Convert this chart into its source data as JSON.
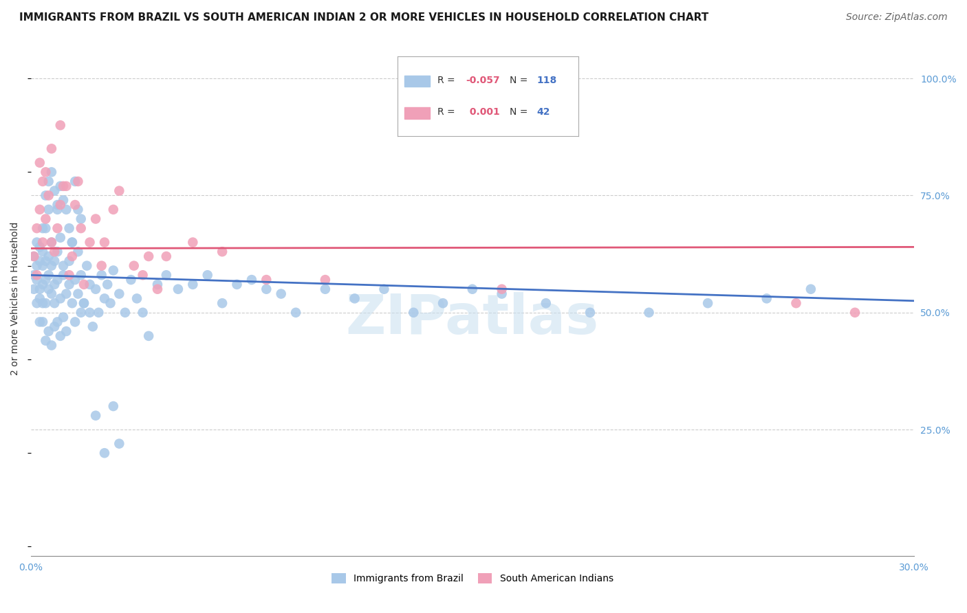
{
  "title": "IMMIGRANTS FROM BRAZIL VS SOUTH AMERICAN INDIAN 2 OR MORE VEHICLES IN HOUSEHOLD CORRELATION CHART",
  "source": "Source: ZipAtlas.com",
  "ylabel": "2 or more Vehicles in Household",
  "xlim": [
    0.0,
    0.3
  ],
  "ylim": [
    -0.02,
    1.08
  ],
  "legend_r_brazil": "-0.057",
  "legend_n_brazil": "118",
  "legend_r_indian": " 0.001",
  "legend_n_indian": "42",
  "legend_label_brazil": "Immigrants from Brazil",
  "legend_label_indian": "South American Indians",
  "blue_color": "#a8c8e8",
  "pink_color": "#f0a0b8",
  "line_blue": "#4472c4",
  "line_pink": "#e05878",
  "brazil_x": [
    0.001,
    0.001,
    0.001,
    0.002,
    0.002,
    0.002,
    0.002,
    0.003,
    0.003,
    0.003,
    0.003,
    0.003,
    0.004,
    0.004,
    0.004,
    0.004,
    0.004,
    0.004,
    0.005,
    0.005,
    0.005,
    0.005,
    0.005,
    0.006,
    0.006,
    0.006,
    0.006,
    0.006,
    0.007,
    0.007,
    0.007,
    0.007,
    0.008,
    0.008,
    0.008,
    0.008,
    0.009,
    0.009,
    0.009,
    0.009,
    0.01,
    0.01,
    0.01,
    0.011,
    0.011,
    0.011,
    0.012,
    0.012,
    0.013,
    0.013,
    0.014,
    0.014,
    0.015,
    0.015,
    0.016,
    0.016,
    0.017,
    0.017,
    0.018,
    0.019,
    0.02,
    0.021,
    0.022,
    0.023,
    0.024,
    0.025,
    0.026,
    0.027,
    0.028,
    0.03,
    0.032,
    0.034,
    0.036,
    0.038,
    0.04,
    0.043,
    0.046,
    0.05,
    0.055,
    0.06,
    0.065,
    0.07,
    0.075,
    0.08,
    0.085,
    0.09,
    0.1,
    0.11,
    0.12,
    0.13,
    0.14,
    0.15,
    0.16,
    0.175,
    0.19,
    0.21,
    0.23,
    0.25,
    0.265,
    0.005,
    0.006,
    0.007,
    0.008,
    0.009,
    0.01,
    0.011,
    0.012,
    0.013,
    0.014,
    0.015,
    0.016,
    0.017,
    0.018,
    0.02,
    0.022,
    0.025,
    0.028,
    0.03
  ],
  "brazil_y": [
    0.58,
    0.55,
    0.62,
    0.6,
    0.52,
    0.65,
    0.57,
    0.61,
    0.55,
    0.48,
    0.64,
    0.53,
    0.6,
    0.56,
    0.52,
    0.68,
    0.48,
    0.63,
    0.57,
    0.61,
    0.44,
    0.52,
    0.68,
    0.58,
    0.46,
    0.62,
    0.55,
    0.72,
    0.6,
    0.43,
    0.54,
    0.65,
    0.47,
    0.56,
    0.61,
    0.52,
    0.48,
    0.57,
    0.63,
    0.72,
    0.53,
    0.45,
    0.66,
    0.58,
    0.49,
    0.6,
    0.54,
    0.46,
    0.61,
    0.56,
    0.52,
    0.65,
    0.48,
    0.57,
    0.54,
    0.63,
    0.5,
    0.58,
    0.52,
    0.6,
    0.56,
    0.47,
    0.55,
    0.5,
    0.58,
    0.53,
    0.56,
    0.52,
    0.59,
    0.54,
    0.5,
    0.57,
    0.53,
    0.5,
    0.45,
    0.56,
    0.58,
    0.55,
    0.56,
    0.58,
    0.52,
    0.56,
    0.57,
    0.55,
    0.54,
    0.5,
    0.55,
    0.53,
    0.55,
    0.5,
    0.52,
    0.55,
    0.54,
    0.52,
    0.5,
    0.5,
    0.52,
    0.53,
    0.55,
    0.75,
    0.78,
    0.8,
    0.76,
    0.73,
    0.77,
    0.74,
    0.72,
    0.68,
    0.65,
    0.78,
    0.72,
    0.7,
    0.52,
    0.5,
    0.28,
    0.2,
    0.3,
    0.22
  ],
  "indian_x": [
    0.001,
    0.002,
    0.002,
    0.003,
    0.003,
    0.004,
    0.004,
    0.005,
    0.005,
    0.006,
    0.007,
    0.007,
    0.008,
    0.009,
    0.01,
    0.01,
    0.011,
    0.012,
    0.013,
    0.014,
    0.015,
    0.016,
    0.017,
    0.018,
    0.02,
    0.022,
    0.024,
    0.025,
    0.028,
    0.03,
    0.035,
    0.038,
    0.04,
    0.043,
    0.046,
    0.055,
    0.065,
    0.08,
    0.1,
    0.16,
    0.26,
    0.28
  ],
  "indian_y": [
    0.62,
    0.68,
    0.58,
    0.72,
    0.82,
    0.65,
    0.78,
    0.7,
    0.8,
    0.75,
    0.65,
    0.85,
    0.63,
    0.68,
    0.73,
    0.9,
    0.77,
    0.77,
    0.58,
    0.62,
    0.73,
    0.78,
    0.68,
    0.56,
    0.65,
    0.7,
    0.6,
    0.65,
    0.72,
    0.76,
    0.6,
    0.58,
    0.62,
    0.55,
    0.62,
    0.65,
    0.63,
    0.57,
    0.57,
    0.55,
    0.52,
    0.5
  ],
  "brazil_trendline_x": [
    0.0,
    0.3
  ],
  "brazil_trendline_y": [
    0.58,
    0.525
  ],
  "indian_trendline_x": [
    0.0,
    0.3
  ],
  "indian_trendline_y": [
    0.637,
    0.64
  ],
  "background_color": "#ffffff",
  "grid_color": "#cccccc",
  "title_fontsize": 11,
  "axis_label_fontsize": 10,
  "tick_fontsize": 10,
  "source_fontsize": 10,
  "watermark": "ZIPatlas"
}
